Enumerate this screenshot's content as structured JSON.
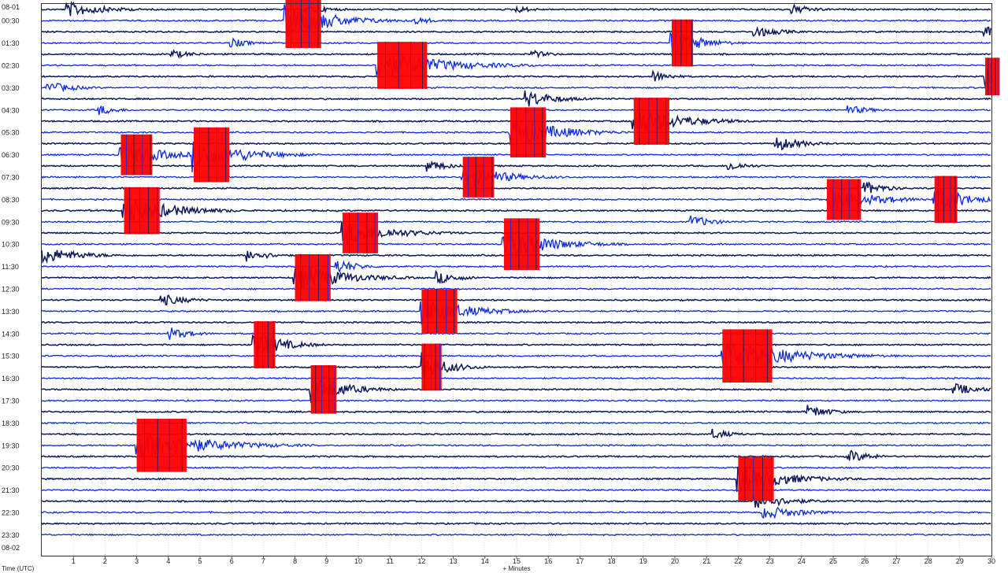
{
  "chart_data": {
    "type": "helicorder",
    "start_date_label": "08-01",
    "end_date_label": "08-02",
    "xlabel": "+ Minutes",
    "ylabel": "Time (UTC)",
    "xlim": [
      0,
      30
    ],
    "x_ticks": [
      "1",
      "2",
      "3",
      "4",
      "5",
      "6",
      "7",
      "8",
      "9",
      "10",
      "11",
      "12",
      "13",
      "14",
      "15",
      "16",
      "17",
      "18",
      "19",
      "20",
      "21",
      "22",
      "23",
      "24",
      "25",
      "26",
      "27",
      "28",
      "29",
      "30"
    ],
    "y_ticks": [
      "00:30",
      "01:30",
      "02:30",
      "03:30",
      "04:30",
      "05:30",
      "06:30",
      "07:30",
      "08:30",
      "09:30",
      "10:30",
      "11:30",
      "12:30",
      "13:30",
      "14:30",
      "15:30",
      "16:30",
      "17:30",
      "18:30",
      "19:30",
      "20:30",
      "21:30",
      "22:30",
      "23:30"
    ],
    "rows_per_hour": 2,
    "trace_colors": [
      "#0d1a5c",
      "#0a2be0"
    ],
    "clip_color": "#ff0000",
    "events": [
      {
        "start": "00:00",
        "minute": 0.8,
        "amp": 1.6,
        "len": 2.0
      },
      {
        "start": "00:00",
        "minute": 8.3,
        "amp": 0.9,
        "len": 1.5
      },
      {
        "start": "00:00",
        "minute": 15.0,
        "amp": 0.7,
        "len": 1.0
      },
      {
        "start": "00:00",
        "minute": 23.7,
        "amp": 1.0,
        "len": 1.2
      },
      {
        "start": "00:30",
        "minute": 7.7,
        "amp": 3.5,
        "len": 2.5,
        "clipped": true
      },
      {
        "start": "00:30",
        "minute": 11.8,
        "amp": 0.8,
        "len": 1.2
      },
      {
        "start": "01:00",
        "minute": 22.5,
        "amp": 1.2,
        "len": 1.5
      },
      {
        "start": "01:00",
        "minute": 29.8,
        "amp": 1.3,
        "len": 1.0
      },
      {
        "start": "01:30",
        "minute": 19.9,
        "amp": 3.0,
        "len": 1.5,
        "clipped": true
      },
      {
        "start": "01:30",
        "minute": 6.0,
        "amp": 1.0,
        "len": 1.0
      },
      {
        "start": "02:00",
        "minute": 15.5,
        "amp": 0.8,
        "len": 1.0
      },
      {
        "start": "02:00",
        "minute": 4.1,
        "amp": 0.9,
        "len": 1.2
      },
      {
        "start": "02:30",
        "minute": 10.6,
        "amp": 3.0,
        "len": 3.5,
        "clipped": true
      },
      {
        "start": "03:00",
        "minute": 19.3,
        "amp": 1.2,
        "len": 1.0
      },
      {
        "start": "03:00",
        "minute": 29.8,
        "amp": 2.4,
        "len": 0.6,
        "clipped": true
      },
      {
        "start": "03:30",
        "minute": 0.2,
        "amp": 1.2,
        "len": 1.5
      },
      {
        "start": "04:00",
        "minute": 15.3,
        "amp": 1.8,
        "len": 1.6
      },
      {
        "start": "04:30",
        "minute": 1.8,
        "amp": 1.1,
        "len": 1.0
      },
      {
        "start": "04:30",
        "minute": 25.5,
        "amp": 0.9,
        "len": 1.4
      },
      {
        "start": "05:00",
        "minute": 18.7,
        "amp": 3.0,
        "len": 2.5,
        "clipped": true
      },
      {
        "start": "05:30",
        "minute": 14.8,
        "amp": 3.2,
        "len": 2.5,
        "clipped": true
      },
      {
        "start": "06:00",
        "minute": 23.2,
        "amp": 1.6,
        "len": 1.4
      },
      {
        "start": "06:30",
        "minute": 2.5,
        "amp": 2.6,
        "len": 2.2,
        "clipped": true
      },
      {
        "start": "06:30",
        "minute": 4.8,
        "amp": 3.5,
        "len": 2.5,
        "clipped": true
      },
      {
        "start": "07:00",
        "minute": 12.2,
        "amp": 1.2,
        "len": 1.2
      },
      {
        "start": "07:00",
        "minute": 21.7,
        "amp": 1.1,
        "len": 1.0
      },
      {
        "start": "07:30",
        "minute": 13.3,
        "amp": 2.6,
        "len": 2.2,
        "clipped": true
      },
      {
        "start": "08:00",
        "minute": 26.0,
        "amp": 1.4,
        "len": 1.2
      },
      {
        "start": "08:30",
        "minute": 24.8,
        "amp": 2.6,
        "len": 2.4,
        "clipped": true
      },
      {
        "start": "08:30",
        "minute": 28.2,
        "amp": 3.0,
        "len": 1.6,
        "clipped": true
      },
      {
        "start": "09:00",
        "minute": 2.6,
        "amp": 3.0,
        "len": 2.5,
        "clipped": true
      },
      {
        "start": "09:30",
        "minute": 20.5,
        "amp": 1.4,
        "len": 1.2
      },
      {
        "start": "10:00",
        "minute": 9.5,
        "amp": 2.6,
        "len": 2.5,
        "clipped": true
      },
      {
        "start": "10:30",
        "minute": 14.6,
        "amp": 3.3,
        "len": 2.5,
        "clipped": true
      },
      {
        "start": "11:00",
        "minute": 0.0,
        "amp": 1.8,
        "len": 2.0
      },
      {
        "start": "11:00",
        "minute": 6.5,
        "amp": 1.3,
        "len": 1.2
      },
      {
        "start": "11:30",
        "minute": 9.3,
        "amp": 1.6,
        "len": 1.2
      },
      {
        "start": "12:00",
        "minute": 8.0,
        "amp": 3.0,
        "len": 2.5,
        "clipped": true
      },
      {
        "start": "12:00",
        "minute": 12.5,
        "amp": 1.3,
        "len": 1.2
      },
      {
        "start": "13:00",
        "minute": 3.8,
        "amp": 1.2,
        "len": 1.5
      },
      {
        "start": "13:30",
        "minute": 12.0,
        "amp": 2.8,
        "len": 2.5,
        "clipped": true
      },
      {
        "start": "14:30",
        "minute": 4.0,
        "amp": 1.4,
        "len": 1.2
      },
      {
        "start": "15:00",
        "minute": 6.7,
        "amp": 3.0,
        "len": 1.5,
        "clipped": true
      },
      {
        "start": "15:30",
        "minute": 21.5,
        "amp": 3.4,
        "len": 3.5,
        "clipped": true
      },
      {
        "start": "16:00",
        "minute": 12.0,
        "amp": 3.0,
        "len": 1.4,
        "clipped": true
      },
      {
        "start": "17:00",
        "minute": 8.5,
        "amp": 3.1,
        "len": 1.8,
        "clipped": true
      },
      {
        "start": "17:00",
        "minute": 28.8,
        "amp": 1.3,
        "len": 1.4
      },
      {
        "start": "18:00",
        "minute": 24.2,
        "amp": 1.4,
        "len": 1.2
      },
      {
        "start": "19:00",
        "minute": 21.2,
        "amp": 1.1,
        "len": 1.0
      },
      {
        "start": "19:30",
        "minute": 3.0,
        "amp": 3.4,
        "len": 3.5,
        "clipped": true
      },
      {
        "start": "20:00",
        "minute": 25.5,
        "amp": 1.3,
        "len": 1.2
      },
      {
        "start": "21:00",
        "minute": 22.0,
        "amp": 2.8,
        "len": 2.5,
        "clipped": true
      },
      {
        "start": "22:00",
        "minute": 22.5,
        "amp": 1.5,
        "len": 2.0
      },
      {
        "start": "22:30",
        "minute": 22.8,
        "amp": 1.5,
        "len": 2.0
      }
    ]
  }
}
